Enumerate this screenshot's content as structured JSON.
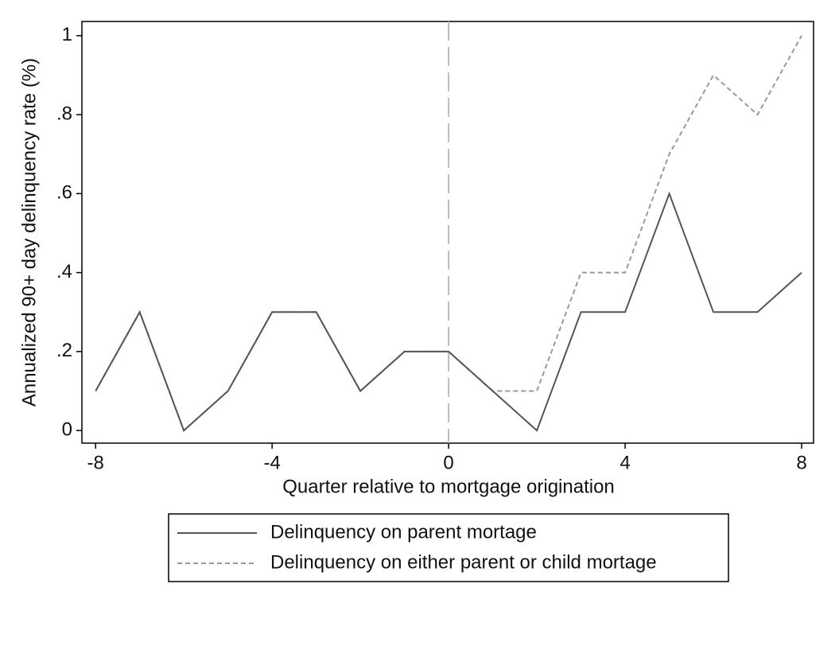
{
  "chart_data": {
    "type": "line",
    "xlabel": "Quarter relative to mortgage origination",
    "ylabel": "Annualized 90+ day delinquency rate (%)",
    "x": [
      -8,
      -7,
      -6,
      -5,
      -4,
      -3,
      -2,
      -1,
      0,
      1,
      2,
      3,
      4,
      5,
      6,
      7,
      8
    ],
    "series": [
      {
        "name": "Delinquency on parent mortage",
        "color": "#555555",
        "dash": "solid",
        "values": [
          0.1,
          0.3,
          0,
          0.1,
          0.3,
          0.3,
          0.1,
          0.2,
          0.2,
          0.1,
          0,
          0.3,
          0.3,
          0.6,
          0.3,
          0.3,
          0.4
        ]
      },
      {
        "name": "Delinquency on either parent or child mortage",
        "color": "#999999",
        "dash": "dashed",
        "values": [
          0.1,
          0.3,
          0,
          0.1,
          0.3,
          0.3,
          0.1,
          0.2,
          0.2,
          0.1,
          0.1,
          0.4,
          0.4,
          0.7,
          0.9,
          0.8,
          1
        ]
      }
    ],
    "xlim": [
      -8.31,
      8.27
    ],
    "ylim": [
      -0.032,
      1.036
    ],
    "xticks": [
      -8,
      -4,
      0,
      4,
      8
    ],
    "yticks": [
      0,
      {
        "value": 0.2,
        "label": ".2"
      },
      {
        "value": 0.4,
        "label": ".4"
      },
      {
        "value": 0.6,
        "label": ".6"
      },
      {
        "value": 0.8,
        "label": ".8"
      },
      1
    ],
    "xline": 0,
    "xline_color": "#bbbbbb",
    "legend": "bottom"
  }
}
